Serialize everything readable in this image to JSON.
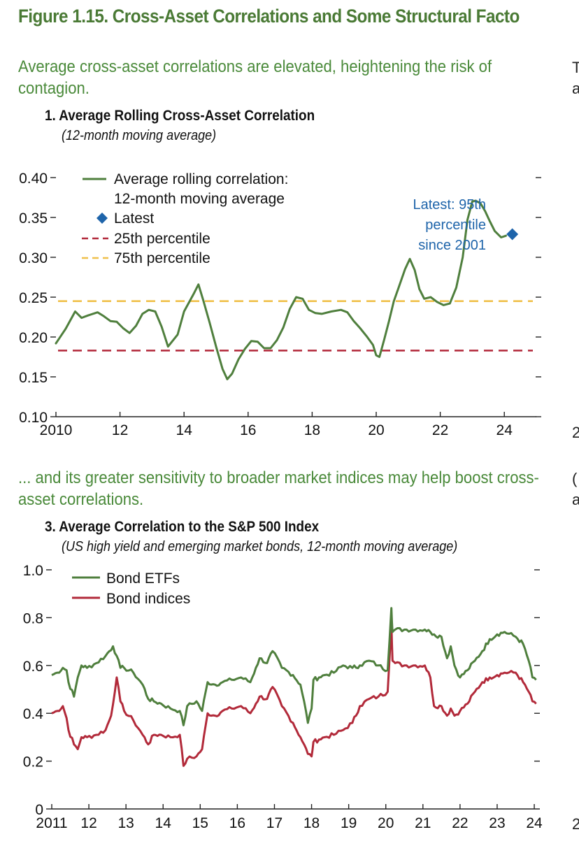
{
  "figure_title": "Figure 1.15. Cross-Asset Correlations and Some Structural Facto",
  "panel1": {
    "subheading": "Average cross-asset correlations are elevated, heightening the risk of contagion.",
    "title": "1. Average Rolling Cross-Asset Correlation",
    "subtitle": "(12-month moving average)",
    "annotation": [
      "Latest: 95th",
      "percentile",
      "since 2001"
    ]
  },
  "panel3": {
    "subheading": "... and its greater sensitivity to broader market indices may help boost cross-asset correlations.",
    "title": "3. Average Correlation to the S&P 500 Index",
    "subtitle": "(US high yield and emerging market bonds, 12-month moving average)"
  },
  "colors": {
    "title_green": "#4a7a35",
    "series_green": "#4f7f3d",
    "series_red": "#b22a3a",
    "p25_red": "#b2283a",
    "p75_yellow": "#f0c04a",
    "latest_blue": "#1e64aa",
    "annotation_blue": "#1e64aa"
  },
  "chart_data": [
    {
      "type": "line",
      "xlim": [
        2010,
        2025
      ],
      "ylim": [
        0.1,
        0.4
      ],
      "x_ticks": [
        2010,
        2012,
        2014,
        2016,
        2018,
        2020,
        2022,
        2024
      ],
      "x_tick_labels": [
        "2010",
        "12",
        "14",
        "16",
        "18",
        "20",
        "22",
        "24"
      ],
      "y_ticks": [
        0.1,
        0.15,
        0.2,
        0.25,
        0.3,
        0.35,
        0.4
      ],
      "y_tick_labels": [
        "0.10",
        "0.15",
        "0.20",
        "0.25",
        "0.30",
        "0.35",
        "0.40"
      ],
      "legend": [
        {
          "label": "Average rolling correlation:",
          "label2": "12-month moving average",
          "style": "solid-line"
        },
        {
          "label": "Latest",
          "style": "diamond"
        },
        {
          "label": "25th percentile",
          "style": "dashed-red"
        },
        {
          "label": "75th percentile",
          "style": "dashed-yellow"
        }
      ],
      "series": [
        {
          "name": "Average rolling correlation: 12-month moving average",
          "x": [
            2010.0,
            2010.3,
            2010.6,
            2010.8,
            2011.0,
            2011.3,
            2011.5,
            2011.7,
            2011.9,
            2012.1,
            2012.3,
            2012.5,
            2012.7,
            2012.9,
            2013.1,
            2013.3,
            2013.5,
            2013.8,
            2014.0,
            2014.3,
            2014.45,
            2014.6,
            2014.8,
            2015.0,
            2015.2,
            2015.35,
            2015.5,
            2015.7,
            2015.9,
            2016.1,
            2016.3,
            2016.5,
            2016.7,
            2016.9,
            2017.1,
            2017.3,
            2017.5,
            2017.7,
            2017.9,
            2018.1,
            2018.3,
            2018.6,
            2018.9,
            2019.1,
            2019.3,
            2019.5,
            2019.7,
            2019.9,
            2020.0,
            2020.1,
            2020.25,
            2020.4,
            2020.55,
            2020.7,
            2020.9,
            2021.05,
            2021.2,
            2021.35,
            2021.5,
            2021.7,
            2021.9,
            2022.1,
            2022.3,
            2022.5,
            2022.7,
            2022.85,
            2023.0,
            2023.1,
            2023.25,
            2023.4,
            2023.55,
            2023.7,
            2023.9,
            2024.05
          ],
          "values": [
            0.192,
            0.21,
            0.232,
            0.224,
            0.227,
            0.231,
            0.226,
            0.22,
            0.219,
            0.211,
            0.205,
            0.214,
            0.229,
            0.234,
            0.232,
            0.213,
            0.188,
            0.203,
            0.232,
            0.254,
            0.266,
            0.246,
            0.218,
            0.188,
            0.16,
            0.147,
            0.154,
            0.172,
            0.185,
            0.195,
            0.194,
            0.186,
            0.186,
            0.196,
            0.212,
            0.235,
            0.25,
            0.248,
            0.234,
            0.23,
            0.229,
            0.232,
            0.234,
            0.231,
            0.22,
            0.211,
            0.201,
            0.19,
            0.177,
            0.175,
            0.197,
            0.22,
            0.245,
            0.262,
            0.285,
            0.298,
            0.284,
            0.26,
            0.248,
            0.25,
            0.244,
            0.24,
            0.242,
            0.262,
            0.3,
            0.347,
            0.37,
            0.371,
            0.368,
            0.358,
            0.345,
            0.333,
            0.325,
            0.327
          ]
        }
      ],
      "latest_point": {
        "x": 2024.25,
        "y": 0.329
      },
      "reference_lines": [
        {
          "name": "25th percentile",
          "value": 0.183
        },
        {
          "name": "75th percentile",
          "value": 0.245
        }
      ]
    },
    {
      "type": "line",
      "xlim": [
        2011,
        2024.15
      ],
      "ylim": [
        0,
        1.0
      ],
      "x_ticks": [
        2011,
        2012,
        2013,
        2014,
        2015,
        2016,
        2017,
        2018,
        2019,
        2020,
        2021,
        2022,
        2023,
        2024
      ],
      "x_tick_labels": [
        "2011",
        "12",
        "13",
        "14",
        "15",
        "16",
        "17",
        "18",
        "19",
        "20",
        "21",
        "22",
        "23",
        "24"
      ],
      "y_ticks": [
        0,
        0.2,
        0.4,
        0.6,
        0.8,
        1.0
      ],
      "y_tick_labels": [
        "0",
        "0.2",
        "0.4",
        "0.6",
        "0.8",
        "1.0"
      ],
      "series": [
        {
          "name": "Bond ETFs",
          "x": [
            2011.0,
            2011.15,
            2011.3,
            2011.4,
            2011.45,
            2011.6,
            2011.7,
            2011.8,
            2011.95,
            2012.2,
            2012.45,
            2012.65,
            2012.75,
            2012.85,
            2012.95,
            2013.2,
            2013.45,
            2013.6,
            2013.75,
            2013.95,
            2014.2,
            2014.45,
            2014.55,
            2014.65,
            2014.9,
            2015.05,
            2015.2,
            2015.4,
            2015.6,
            2015.85,
            2016.1,
            2016.35,
            2016.5,
            2016.6,
            2016.8,
            2016.95,
            2017.2,
            2017.5,
            2017.7,
            2017.8,
            2017.9,
            2018.0,
            2018.05,
            2018.2,
            2018.35,
            2018.6,
            2018.85,
            2019.1,
            2019.3,
            2019.55,
            2019.8,
            2020.05,
            2020.15,
            2020.18,
            2020.25,
            2020.5,
            2020.8,
            2021.05,
            2021.2,
            2021.3,
            2021.5,
            2021.65,
            2021.75,
            2021.85,
            2022.0,
            2022.2,
            2022.4,
            2022.6,
            2022.8,
            2023.0,
            2023.2,
            2023.5,
            2023.7,
            2023.85,
            2023.95,
            2024.05
          ],
          "values": [
            0.56,
            0.57,
            0.59,
            0.58,
            0.53,
            0.47,
            0.55,
            0.6,
            0.59,
            0.61,
            0.64,
            0.68,
            0.64,
            0.59,
            0.59,
            0.57,
            0.52,
            0.46,
            0.45,
            0.44,
            0.42,
            0.41,
            0.35,
            0.43,
            0.45,
            0.41,
            0.53,
            0.52,
            0.53,
            0.54,
            0.55,
            0.53,
            0.59,
            0.63,
            0.61,
            0.66,
            0.59,
            0.56,
            0.52,
            0.45,
            0.36,
            0.42,
            0.54,
            0.55,
            0.56,
            0.57,
            0.6,
            0.59,
            0.6,
            0.62,
            0.6,
            0.58,
            0.84,
            0.74,
            0.75,
            0.75,
            0.75,
            0.75,
            0.74,
            0.73,
            0.72,
            0.63,
            0.68,
            0.6,
            0.55,
            0.58,
            0.62,
            0.66,
            0.71,
            0.73,
            0.74,
            0.72,
            0.69,
            0.62,
            0.55,
            0.54
          ]
        },
        {
          "name": "Bond indices",
          "x": [
            2011.0,
            2011.15,
            2011.3,
            2011.4,
            2011.45,
            2011.6,
            2011.7,
            2011.8,
            2011.95,
            2012.2,
            2012.45,
            2012.6,
            2012.75,
            2012.85,
            2012.95,
            2013.2,
            2013.45,
            2013.6,
            2013.75,
            2013.95,
            2014.2,
            2014.45,
            2014.55,
            2014.65,
            2014.9,
            2015.05,
            2015.2,
            2015.4,
            2015.6,
            2015.85,
            2016.1,
            2016.35,
            2016.5,
            2016.6,
            2016.8,
            2016.95,
            2017.2,
            2017.5,
            2017.7,
            2017.8,
            2017.9,
            2018.0,
            2018.05,
            2018.2,
            2018.35,
            2018.6,
            2018.85,
            2019.1,
            2019.3,
            2019.55,
            2019.8,
            2020.05,
            2020.15,
            2020.18,
            2020.25,
            2020.5,
            2020.8,
            2021.05,
            2021.2,
            2021.3,
            2021.5,
            2021.65,
            2021.75,
            2021.85,
            2022.0,
            2022.2,
            2022.4,
            2022.6,
            2022.8,
            2023.0,
            2023.2,
            2023.5,
            2023.7,
            2023.85,
            2023.95,
            2024.05
          ],
          "values": [
            0.4,
            0.41,
            0.43,
            0.38,
            0.33,
            0.27,
            0.25,
            0.3,
            0.3,
            0.31,
            0.33,
            0.39,
            0.55,
            0.45,
            0.41,
            0.37,
            0.31,
            0.27,
            0.31,
            0.31,
            0.3,
            0.31,
            0.18,
            0.21,
            0.22,
            0.25,
            0.4,
            0.39,
            0.41,
            0.42,
            0.43,
            0.4,
            0.44,
            0.47,
            0.46,
            0.51,
            0.43,
            0.36,
            0.3,
            0.27,
            0.23,
            0.22,
            0.28,
            0.29,
            0.3,
            0.31,
            0.33,
            0.36,
            0.43,
            0.46,
            0.47,
            0.49,
            0.78,
            0.62,
            0.61,
            0.6,
            0.6,
            0.6,
            0.55,
            0.43,
            0.43,
            0.39,
            0.42,
            0.39,
            0.41,
            0.44,
            0.49,
            0.53,
            0.55,
            0.56,
            0.57,
            0.57,
            0.53,
            0.49,
            0.45,
            0.44
          ]
        }
      ],
      "legend": [
        {
          "label": "Bond ETFs"
        },
        {
          "label": "Bond indices"
        }
      ]
    }
  ],
  "right_edge_glyphs": [
    "T",
    "a",
    "2",
    "(",
    "a",
    "2"
  ]
}
